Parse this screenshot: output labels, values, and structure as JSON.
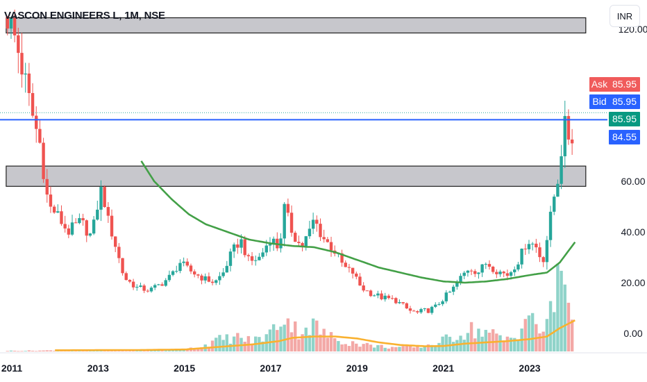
{
  "header": {
    "title": "VASCON ENGINEERS L, 1M, NSE",
    "currency_label": "INR"
  },
  "price_tags": {
    "ask_label": "Ask",
    "ask_value": "85.95",
    "bid_label": "Bid",
    "bid_value": "85.95",
    "last_value": "85.95",
    "line_value": "84.55"
  },
  "colors": {
    "up": "#26a69a",
    "down": "#ef5350",
    "ma_price": "#43a047",
    "ma_volume": "#f9b12f",
    "hline": "#2962ff",
    "zone_fill": "#c4c4c9",
    "ask_bg": "#f05b5b",
    "bid_bg": "#2962ff",
    "last_bg": "#089981"
  },
  "chart_data": {
    "type": "candlestick",
    "symbol": "VASCON ENGINEERS L",
    "interval": "1M",
    "exchange": "NSE",
    "currency": "INR",
    "ylim": [
      -6,
      125
    ],
    "y_ticks": [
      {
        "value": 0,
        "label": "0.00"
      },
      {
        "value": 20,
        "label": "20.00"
      },
      {
        "value": 40,
        "label": "40.00"
      },
      {
        "value": 60,
        "label": "60.00"
      },
      {
        "value": 120,
        "label": "120.00"
      }
    ],
    "x_range": [
      2010.95,
      2024.3
    ],
    "x_ticks": [
      {
        "value": 2011,
        "label": "2011"
      },
      {
        "value": 2013,
        "label": "2013"
      },
      {
        "value": 2015,
        "label": "2015"
      },
      {
        "value": 2017,
        "label": "2017"
      },
      {
        "value": 2019,
        "label": "2019"
      },
      {
        "value": 2021,
        "label": "2021"
      },
      {
        "value": 2023,
        "label": "2023"
      }
    ],
    "close_anchors": [
      [
        2010.9,
        125
      ],
      [
        2011.1,
        115
      ],
      [
        2011.3,
        100
      ],
      [
        2011.45,
        88
      ],
      [
        2011.65,
        75
      ],
      [
        2011.85,
        50
      ],
      [
        2012.0,
        48
      ],
      [
        2012.3,
        40
      ],
      [
        2012.6,
        44
      ],
      [
        2012.85,
        38
      ],
      [
        2013.0,
        52
      ],
      [
        2013.1,
        58
      ],
      [
        2013.2,
        46
      ],
      [
        2013.35,
        38
      ],
      [
        2013.6,
        22
      ],
      [
        2013.9,
        18
      ],
      [
        2014.2,
        17
      ],
      [
        2014.5,
        20
      ],
      [
        2014.7,
        23
      ],
      [
        2014.9,
        28
      ],
      [
        2015.1,
        25
      ],
      [
        2015.4,
        22
      ],
      [
        2015.7,
        20
      ],
      [
        2015.9,
        24
      ],
      [
        2016.1,
        32
      ],
      [
        2016.3,
        37
      ],
      [
        2016.5,
        28
      ],
      [
        2016.75,
        30
      ],
      [
        2017.0,
        38
      ],
      [
        2017.2,
        33
      ],
      [
        2017.3,
        50
      ],
      [
        2017.5,
        40
      ],
      [
        2017.7,
        34
      ],
      [
        2017.9,
        40
      ],
      [
        2018.0,
        45
      ],
      [
        2018.2,
        38
      ],
      [
        2018.5,
        32
      ],
      [
        2018.7,
        26
      ],
      [
        2018.9,
        24
      ],
      [
        2019.1,
        18
      ],
      [
        2019.3,
        16
      ],
      [
        2019.6,
        14
      ],
      [
        2019.9,
        13
      ],
      [
        2020.2,
        9
      ],
      [
        2020.4,
        8
      ],
      [
        2020.6,
        9
      ],
      [
        2020.8,
        10
      ],
      [
        2020.95,
        13
      ],
      [
        2021.2,
        17
      ],
      [
        2021.4,
        22
      ],
      [
        2021.6,
        26
      ],
      [
        2021.8,
        24
      ],
      [
        2022.0,
        28
      ],
      [
        2022.2,
        25
      ],
      [
        2022.5,
        23
      ],
      [
        2022.75,
        29
      ],
      [
        2022.95,
        37
      ],
      [
        2023.15,
        34
      ],
      [
        2023.3,
        28
      ],
      [
        2023.45,
        42
      ],
      [
        2023.55,
        53
      ],
      [
        2023.62,
        58
      ],
      [
        2023.7,
        66
      ],
      [
        2023.78,
        82
      ],
      [
        2023.86,
        80
      ],
      [
        2023.96,
        75
      ],
      [
        2024.05,
        86
      ]
    ],
    "ma_price_anchors": [
      [
        2014.0,
        68
      ],
      [
        2014.3,
        60
      ],
      [
        2014.7,
        53
      ],
      [
        2015.1,
        47
      ],
      [
        2015.5,
        43
      ],
      [
        2016.0,
        40
      ],
      [
        2016.5,
        37
      ],
      [
        2017.0,
        35.5
      ],
      [
        2017.5,
        34.5
      ],
      [
        2018.0,
        34
      ],
      [
        2018.5,
        32
      ],
      [
        2019.0,
        29
      ],
      [
        2019.5,
        26
      ],
      [
        2020.0,
        24
      ],
      [
        2020.5,
        22
      ],
      [
        2021.0,
        20.5
      ],
      [
        2021.5,
        20
      ],
      [
        2022.0,
        20.5
      ],
      [
        2022.5,
        21.5
      ],
      [
        2023.0,
        23
      ],
      [
        2023.4,
        24
      ],
      [
        2023.7,
        28
      ],
      [
        2024.05,
        36
      ]
    ],
    "volume_scale_max": 7500000,
    "volume_anchors": [
      [
        2010.9,
        50000
      ],
      [
        2011.5,
        60000
      ],
      [
        2012.0,
        80000
      ],
      [
        2012.5,
        100000
      ],
      [
        2013.0,
        100000
      ],
      [
        2013.5,
        80000
      ],
      [
        2014.0,
        80000
      ],
      [
        2014.5,
        100000
      ],
      [
        2015.0,
        150000
      ],
      [
        2015.4,
        400000
      ],
      [
        2015.8,
        900000
      ],
      [
        2016.2,
        1100000
      ],
      [
        2016.6,
        800000
      ],
      [
        2017.0,
        1400000
      ],
      [
        2017.3,
        2900000
      ],
      [
        2017.6,
        1600000
      ],
      [
        2018.0,
        2000000
      ],
      [
        2018.3,
        1200000
      ],
      [
        2018.7,
        800000
      ],
      [
        2019.0,
        600000
      ],
      [
        2019.5,
        400000
      ],
      [
        2020.0,
        300000
      ],
      [
        2020.4,
        350000
      ],
      [
        2020.8,
        600000
      ],
      [
        2021.2,
        1100000
      ],
      [
        2021.6,
        1700000
      ],
      [
        2022.0,
        1500000
      ],
      [
        2022.4,
        900000
      ],
      [
        2022.7,
        1200000
      ],
      [
        2022.95,
        3000000
      ],
      [
        2023.2,
        1400000
      ],
      [
        2023.45,
        2500000
      ],
      [
        2023.6,
        4000000
      ],
      [
        2023.7,
        7000000
      ],
      [
        2023.8,
        5500000
      ],
      [
        2023.95,
        3000000
      ],
      [
        2024.05,
        3800000
      ]
    ],
    "ma_volume_anchors": [
      [
        2012.0,
        90000
      ],
      [
        2014.0,
        110000
      ],
      [
        2015.0,
        150000
      ],
      [
        2015.8,
        350000
      ],
      [
        2016.6,
        550000
      ],
      [
        2017.2,
        800000
      ],
      [
        2017.5,
        1050000
      ],
      [
        2018.0,
        1150000
      ],
      [
        2018.5,
        1150000
      ],
      [
        2019.0,
        1000000
      ],
      [
        2019.5,
        700000
      ],
      [
        2020.0,
        500000
      ],
      [
        2020.6,
        400000
      ],
      [
        2021.0,
        420000
      ],
      [
        2021.5,
        600000
      ],
      [
        2022.0,
        700000
      ],
      [
        2022.5,
        800000
      ],
      [
        2023.0,
        950000
      ],
      [
        2023.4,
        1150000
      ],
      [
        2023.7,
        1800000
      ],
      [
        2024.05,
        2400000
      ]
    ],
    "zones": [
      {
        "x_start": 2010.95,
        "x_end": 2024.3,
        "low": 118.5,
        "high": 124.5
      },
      {
        "x_start": 2010.95,
        "x_end": 2024.3,
        "low": 58,
        "high": 66
      }
    ],
    "horizontal_line": 84.55,
    "bid_ask_dotted_line": 85.95,
    "grid": false,
    "legend": "none"
  }
}
